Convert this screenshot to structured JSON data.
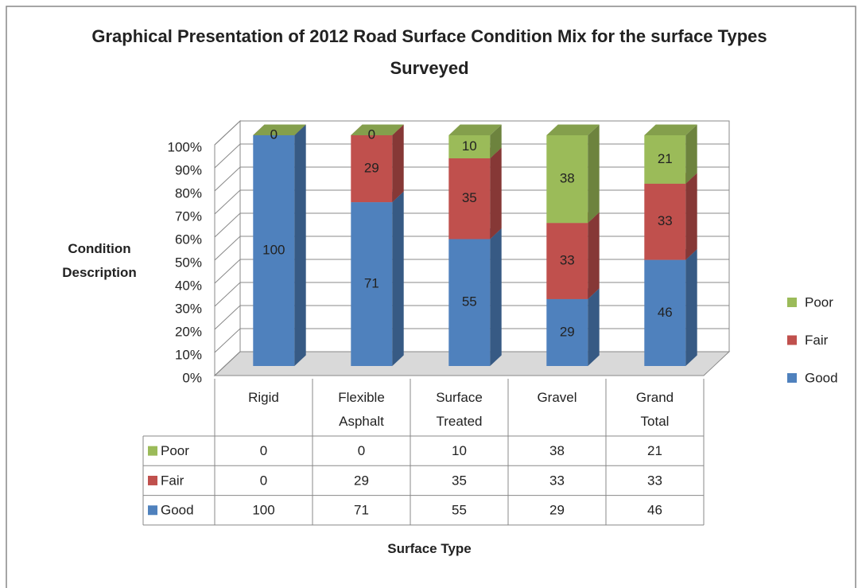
{
  "chart_data": {
    "type": "bar",
    "stacked": true,
    "title": "Graphical Presentation of 2012 Road Surface Condition Mix for the surface Types Surveyed",
    "y_label": "Condition Description",
    "x_label": "Surface Type",
    "categories": [
      "Rigid",
      "Flexible Asphalt",
      "Surface Treated",
      "Gravel",
      "Grand Total"
    ],
    "series": [
      {
        "name": "Good",
        "color": "#4f81bd",
        "values": [
          100,
          71,
          55,
          29,
          46
        ]
      },
      {
        "name": "Fair",
        "color": "#c0504d",
        "values": [
          0,
          29,
          35,
          33,
          33
        ]
      },
      {
        "name": "Poor",
        "color": "#9bbb59",
        "values": [
          0,
          0,
          10,
          38,
          21
        ]
      }
    ],
    "ylim": [
      0,
      100
    ],
    "yticks": [
      {
        "value": 0,
        "label": "0%"
      },
      {
        "value": 10,
        "label": "10%"
      },
      {
        "value": 20,
        "label": "20%"
      },
      {
        "value": 30,
        "label": "30%"
      },
      {
        "value": 40,
        "label": "40%"
      },
      {
        "value": 50,
        "label": "50%"
      },
      {
        "value": 60,
        "label": "60%"
      },
      {
        "value": 70,
        "label": "70%"
      },
      {
        "value": 80,
        "label": "80%"
      },
      {
        "value": 90,
        "label": "90%"
      },
      {
        "value": 100,
        "label": "100%"
      }
    ],
    "grid": true,
    "legend": "right",
    "data_table": true
  }
}
